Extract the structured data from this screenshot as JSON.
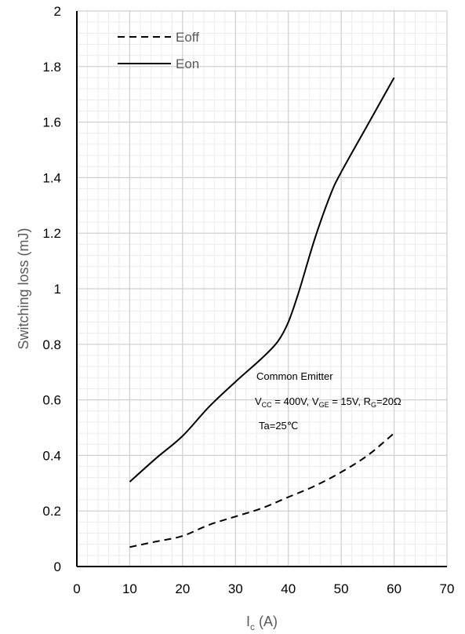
{
  "chart_data": {
    "type": "line",
    "xlabel_main": "I",
    "xlabel_sub": "c",
    "xlabel_unit": " (A)",
    "ylabel": "Switching loss (mJ)",
    "xlim": [
      0,
      70
    ],
    "ylim": [
      0,
      2
    ],
    "xticks": [
      0,
      10,
      20,
      30,
      40,
      50,
      60,
      70
    ],
    "yticks": [
      "0",
      "0.2",
      "0.4",
      "0.6",
      "0.8",
      "1",
      "1.2",
      "1.4",
      "1.6",
      "1.8",
      "2"
    ],
    "ytick_values": [
      0,
      0.2,
      0.4,
      0.6,
      0.8,
      1.0,
      1.2,
      1.4,
      1.6,
      1.8,
      2.0
    ],
    "grid": true,
    "legend_position": "top-left",
    "series": [
      {
        "name": "Eoff",
        "style": "dashed",
        "color": "#000000",
        "x": [
          10,
          15,
          20,
          25,
          30,
          35,
          40,
          45,
          50,
          55,
          60
        ],
        "y": [
          0.07,
          0.09,
          0.11,
          0.15,
          0.18,
          0.21,
          0.25,
          0.29,
          0.34,
          0.4,
          0.48
        ]
      },
      {
        "name": "Eon",
        "style": "solid",
        "color": "#000000",
        "x": [
          10,
          15,
          20,
          25,
          30,
          35,
          38,
          40,
          42,
          45,
          48,
          50,
          55,
          60
        ],
        "y": [
          0.305,
          0.39,
          0.47,
          0.575,
          0.665,
          0.75,
          0.81,
          0.88,
          0.99,
          1.18,
          1.34,
          1.42,
          1.59,
          1.76
        ]
      }
    ],
    "annotation": {
      "line1": "Common Emitter",
      "v1": "V",
      "v1_sub": "CC",
      "v1_val": " = 400V, ",
      "v2": "V",
      "v2_sub": "GE",
      "v2_val": " = 15V, ",
      "v3": "R",
      "v3_sub": "G",
      "v3_val": "=20Ω",
      "line3": "Ta=25℃"
    }
  }
}
